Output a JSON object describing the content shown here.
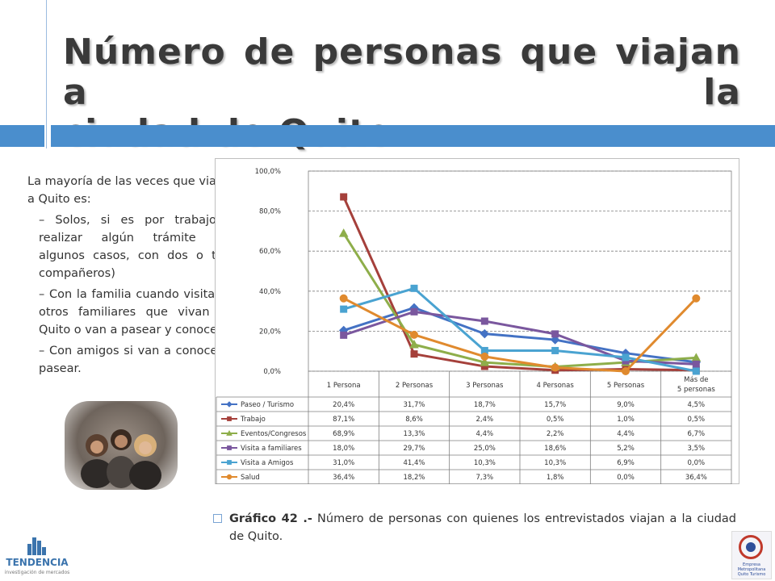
{
  "title": {
    "line1": "Número de personas que viajan a la",
    "line2": "ciudad de Quito"
  },
  "body_text": {
    "intro": "La mayoría de las veces que viajan a Quito es:",
    "points": [
      "– Solos, si es por trabajo o realizar algún trámite (en algunos casos, con dos o tres compañeros)",
      "– Con la familia cuando visitan a otros familiares que vivan en Quito o van a pasear y conocer,",
      "– Con amigos si van a conocer o pasear."
    ]
  },
  "caption": {
    "label": "Gráfico 42 .-",
    "text": " Número de personas con quienes los entrevistados viajan a la ciudad de Quito."
  },
  "logos": {
    "left_name": "TENDENCIA",
    "left_tagline": "investigación de mercados",
    "right_text": "Empresa Metropolitana Quito Turismo"
  },
  "chart_data": {
    "type": "line",
    "categories": [
      "1 Persona",
      "2 Personas",
      "3 Personas",
      "4 Personas",
      "5 Personas",
      "Más de 5 personas"
    ],
    "yticks": [
      "100,0%",
      "80,0%",
      "60,0%",
      "40,0%",
      "20,0%",
      "0,0%"
    ],
    "ylim": [
      0,
      100
    ],
    "grid": true,
    "legend": "data-table",
    "series": [
      {
        "name": "Paseo / Turismo",
        "color": "#4472C4",
        "marker": "diamond",
        "values": [
          20.4,
          31.7,
          18.7,
          15.7,
          9.0,
          4.5
        ],
        "labels": [
          "20,4%",
          "31,7%",
          "18,7%",
          "15,7%",
          "9,0%",
          "4,5%"
        ]
      },
      {
        "name": "Trabajo",
        "color": "#A5403B",
        "marker": "square",
        "values": [
          87.1,
          8.6,
          2.4,
          0.5,
          1.0,
          0.5
        ],
        "labels": [
          "87,1%",
          "8,6%",
          "2,4%",
          "0,5%",
          "1,0%",
          "0,5%"
        ]
      },
      {
        "name": "Eventos/Congresos",
        "color": "#8EAE4A",
        "marker": "triangle",
        "values": [
          68.9,
          13.3,
          4.4,
          2.2,
          4.4,
          6.7
        ],
        "labels": [
          "68,9%",
          "13,3%",
          "4,4%",
          "2,2%",
          "4,4%",
          "6,7%"
        ]
      },
      {
        "name": "Visita a familiares",
        "color": "#7A579E",
        "marker": "x",
        "values": [
          18.0,
          29.7,
          25.0,
          18.6,
          5.2,
          3.5
        ],
        "labels": [
          "18,0%",
          "29,7%",
          "25,0%",
          "18,6%",
          "5,2%",
          "3,5%"
        ]
      },
      {
        "name": "Visita a Amigos",
        "color": "#4AA3D1",
        "marker": "square",
        "values": [
          31.0,
          41.4,
          10.3,
          10.3,
          6.9,
          0.0
        ],
        "labels": [
          "31,0%",
          "41,4%",
          "10,3%",
          "10,3%",
          "6,9%",
          "0,0%"
        ]
      },
      {
        "name": "Salud",
        "color": "#E08A2E",
        "marker": "circle",
        "values": [
          36.4,
          18.2,
          7.3,
          1.8,
          0.0,
          36.4
        ],
        "labels": [
          "36,4%",
          "18,2%",
          "7,3%",
          "1,8%",
          "0,0%",
          "36,4%"
        ]
      }
    ]
  }
}
